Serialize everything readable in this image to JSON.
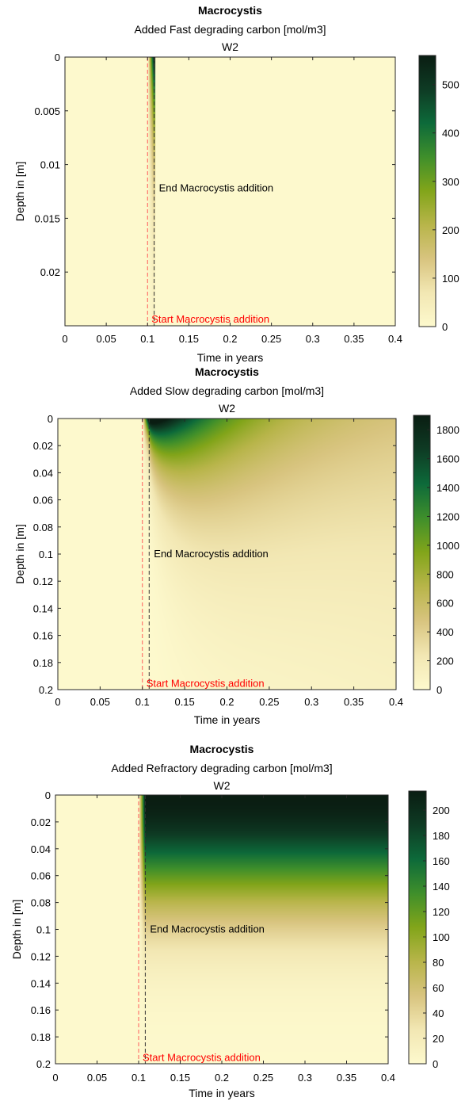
{
  "colors": {
    "colormap_stops": [
      "#fdf9cd",
      "#f2e7b3",
      "#d8c47f",
      "#b8b54a",
      "#82a51a",
      "#3f8f2b",
      "#0d6a3a",
      "#0e3b24",
      "#0a1d12"
    ],
    "start_line": "#ff5a5a",
    "end_line": "#333333",
    "start_text": "#ff0000"
  },
  "chart_data": [
    {
      "type": "heatmap",
      "title": "Macrocystis",
      "subtitle": "Added Fast degrading carbon [mol/m3]",
      "subtitle2": "W2",
      "xlabel": "Time in years",
      "ylabel": "Depth in [m]",
      "xlim": [
        0,
        0.4
      ],
      "ylim": [
        0,
        0.025
      ],
      "y_reversed": true,
      "xticks": [
        0,
        0.05,
        0.1,
        0.15,
        0.2,
        0.25,
        0.3,
        0.35,
        0.4
      ],
      "xtick_labels": [
        "0",
        "0.05",
        "0.1",
        "0.15",
        "0.2",
        "0.25",
        "0.3",
        "0.35",
        "0.4"
      ],
      "yticks": [
        0,
        0.005,
        0.01,
        0.015,
        0.02
      ],
      "ytick_labels": [
        "0",
        "0.005",
        "0.01",
        "0.015",
        "0.02"
      ],
      "colorbar": {
        "min": 0,
        "max": 560,
        "ticks": [
          0,
          100,
          200,
          300,
          400,
          500
        ],
        "tick_labels": [
          "0",
          "100",
          "200",
          "300",
          "400",
          "500"
        ]
      },
      "field": {
        "kind": "fast",
        "t_start": 0.1,
        "t_end": 0.108,
        "max": 560,
        "depth_scale": 0.008
      },
      "start_line_x": 0.1,
      "end_line_x": 0.108,
      "annotations": {
        "start": "Start Macrocystis addition",
        "end": "End Macrocystis addition",
        "end_y": 0.0122,
        "start_y": 0.0247
      }
    },
    {
      "type": "heatmap",
      "title": "Macrocystis",
      "subtitle": "Added Slow degrading carbon [mol/m3]",
      "subtitle2": "W2",
      "xlabel": "Time in years",
      "ylabel": "Depth in [m]",
      "xlim": [
        0,
        0.4
      ],
      "ylim": [
        0,
        0.2
      ],
      "y_reversed": true,
      "xticks": [
        0,
        0.05,
        0.1,
        0.15,
        0.2,
        0.25,
        0.3,
        0.35,
        0.4
      ],
      "xtick_labels": [
        "0",
        "0.05",
        "0.1",
        "0.15",
        "0.2",
        "0.25",
        "0.3",
        "0.35",
        "0.4"
      ],
      "yticks": [
        0,
        0.02,
        0.04,
        0.06,
        0.08,
        0.1,
        0.12,
        0.14,
        0.16,
        0.18,
        0.2
      ],
      "ytick_labels": [
        "0",
        "0.02",
        "0.04",
        "0.06",
        "0.08",
        "0.1",
        "0.12",
        "0.14",
        "0.16",
        "0.18",
        "0.2"
      ],
      "colorbar": {
        "min": 0,
        "max": 1900,
        "ticks": [
          0,
          200,
          400,
          600,
          800,
          1000,
          1200,
          1400,
          1600,
          1800
        ],
        "tick_labels": [
          "0",
          "200",
          "400",
          "600",
          "800",
          "1000",
          "1200",
          "1400",
          "1600",
          "1800"
        ]
      },
      "field": {
        "kind": "slow",
        "t_start": 0.1,
        "t_end": 0.108,
        "max": 1900
      },
      "start_line_x": 0.1,
      "end_line_x": 0.108,
      "annotations": {
        "start": "Start Macrocystis addition",
        "end": "End Macrocystis addition",
        "end_y": 0.1,
        "start_y": 0.198
      }
    },
    {
      "type": "heatmap",
      "title": "Macrocystis",
      "subtitle": "Added Refractory degrading carbon [mol/m3]",
      "subtitle2": "W2",
      "xlabel": "Time in years",
      "ylabel": "Depth in [m]",
      "xlim": [
        0,
        0.4
      ],
      "ylim": [
        0,
        0.2
      ],
      "y_reversed": true,
      "xticks": [
        0,
        0.05,
        0.1,
        0.15,
        0.2,
        0.25,
        0.3,
        0.35,
        0.4
      ],
      "xtick_labels": [
        "0",
        "0.05",
        "0.1",
        "0.15",
        "0.2",
        "0.25",
        "0.3",
        "0.35",
        "0.4"
      ],
      "yticks": [
        0,
        0.02,
        0.04,
        0.06,
        0.08,
        0.1,
        0.12,
        0.14,
        0.16,
        0.18,
        0.2
      ],
      "ytick_labels": [
        "0",
        "0.02",
        "0.04",
        "0.06",
        "0.08",
        "0.1",
        "0.12",
        "0.14",
        "0.16",
        "0.18",
        "0.2"
      ],
      "colorbar": {
        "min": 0,
        "max": 215,
        "ticks": [
          0,
          20,
          40,
          60,
          80,
          100,
          120,
          140,
          160,
          180,
          200
        ],
        "tick_labels": [
          "0",
          "20",
          "40",
          "60",
          "80",
          "100",
          "120",
          "140",
          "160",
          "180",
          "200"
        ]
      },
      "field": {
        "kind": "refractory",
        "t_start": 0.1,
        "t_end": 0.108,
        "max": 215
      },
      "start_line_x": 0.1,
      "end_line_x": 0.108,
      "annotations": {
        "start": "Start Macrocystis addition",
        "end": "End Macrocystis addition",
        "end_y": 0.1,
        "start_y": 0.198
      }
    }
  ]
}
